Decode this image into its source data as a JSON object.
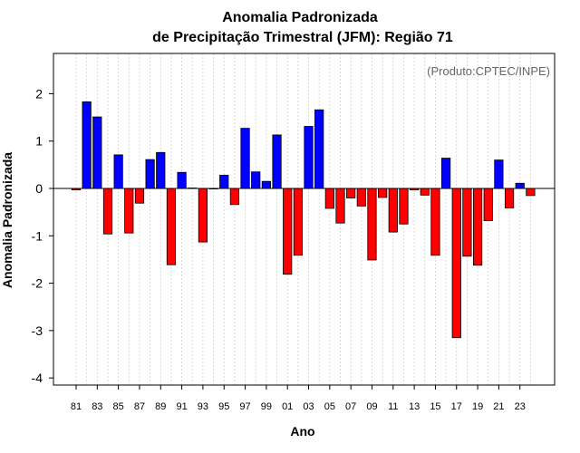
{
  "chart_data": {
    "type": "bar",
    "title": "Anomalia Padronizada",
    "subtitle": "de Precipitação Trimestral (JFM): Região 71",
    "xlabel": "Ano",
    "ylabel": "Anomalia Padronizada",
    "annotation": "(Produto:CPTEC/INPE)",
    "ylim": [
      -4.15,
      2.85
    ],
    "yticks": [
      -4,
      -3,
      -2,
      -1,
      0,
      1,
      2
    ],
    "grid": true,
    "x": [
      1981,
      1982,
      1983,
      1984,
      1985,
      1986,
      1987,
      1988,
      1989,
      1990,
      1991,
      1992,
      1993,
      1994,
      1995,
      1996,
      1997,
      1998,
      1999,
      2000,
      2001,
      2002,
      2003,
      2004,
      2005,
      2006,
      2007,
      2008,
      2009,
      2010,
      2011,
      2012,
      2013,
      2014,
      2015,
      2016,
      2017,
      2018,
      2019,
      2020,
      2021,
      2022,
      2023,
      2024
    ],
    "xtick_labels": [
      "81",
      "83",
      "85",
      "87",
      "89",
      "91",
      "93",
      "95",
      "97",
      "99",
      "01",
      "03",
      "05",
      "07",
      "09",
      "11",
      "13",
      "15",
      "17",
      "19",
      "21",
      "23"
    ],
    "values": [
      -0.03,
      1.83,
      1.51,
      -0.96,
      0.71,
      -0.94,
      -0.31,
      0.61,
      0.76,
      -1.61,
      0.34,
      0.01,
      -1.13,
      0.0,
      0.28,
      -0.34,
      1.27,
      0.35,
      0.15,
      1.13,
      -1.81,
      -1.41,
      1.31,
      1.66,
      -0.42,
      -0.73,
      -0.2,
      -0.37,
      -1.51,
      -0.19,
      -0.92,
      -0.75,
      -0.03,
      -0.14,
      -1.41,
      0.64,
      -3.15,
      -1.43,
      -1.62,
      -0.68,
      0.6,
      -0.41,
      0.11,
      -0.15
    ],
    "colors": {
      "positive": "#0000ff",
      "negative": "#ff0000"
    }
  }
}
